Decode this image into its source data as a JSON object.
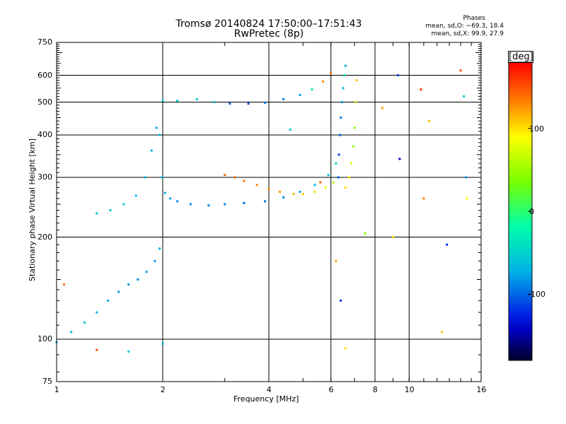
{
  "chart_data": {
    "type": "scatter",
    "title": "Tromsø 20140824  17:50:00–17:51:43",
    "subtitle": "RwPretec (8p)",
    "xlabel": "Frequency [MHz]",
    "ylabel": "Stationary phase Virtual Height [km]",
    "x_scale": "log",
    "y_scale": "log",
    "xlim": [
      1,
      16
    ],
    "ylim": [
      75,
      750
    ],
    "x_ticks": [
      1,
      2,
      4,
      6,
      8,
      10,
      16
    ],
    "y_ticks": [
      75,
      100,
      200,
      300,
      400,
      500,
      600,
      750
    ],
    "x_gridlines": [
      2,
      4,
      6,
      8,
      10
    ],
    "y_gridlines": [
      100,
      200,
      300,
      400,
      500,
      600
    ],
    "legend": {
      "title": "Phases",
      "lines": [
        "mean, sd,O:  −69.3, 18.4",
        "mean, sd,X:  99.9, 27.9"
      ]
    },
    "colorbar": {
      "label": "[deg]",
      "range": [
        -180,
        180
      ],
      "ticks": [
        100,
        0,
        -100
      ],
      "colormap": "rainbow"
    },
    "series": [
      {
        "trace": "F-region echo trace, phase ≈ -100..-60 deg",
        "x": [
          1.3,
          1.42,
          1.55,
          1.68,
          1.78,
          1.86,
          1.92,
          1.96,
          1.99,
          2.03,
          2.1,
          2.2,
          2.4,
          2.7,
          3.0,
          3.4,
          3.9,
          4.4,
          4.9,
          5.4,
          5.9,
          6.2
        ],
        "y": [
          235,
          240,
          250,
          265,
          300,
          360,
          420,
          400,
          300,
          270,
          260,
          255,
          250,
          248,
          250,
          252,
          255,
          262,
          272,
          285,
          305,
          330
        ],
        "phase": [
          -60,
          -65,
          -60,
          -65,
          -70,
          -75,
          -75,
          -70,
          -70,
          -75,
          -80,
          -85,
          -85,
          -90,
          -95,
          -100,
          -95,
          -90,
          -80,
          -70,
          -60,
          -50
        ]
      },
      {
        "trace": "low-frequency echo trace",
        "x": [
          1.0,
          1.1,
          1.2,
          1.3,
          1.4,
          1.5,
          1.6,
          1.7,
          1.8,
          1.9,
          1.96
        ],
        "y": [
          98,
          105,
          112,
          120,
          130,
          138,
          145,
          150,
          158,
          170,
          185
        ],
        "phase": [
          -70,
          -65,
          -60,
          -70,
          -75,
          -80,
          -85,
          -85,
          -80,
          -80,
          -75
        ]
      },
      {
        "trace": "multiple-hop echo trace",
        "x": [
          2.0,
          2.2,
          2.5,
          2.8,
          3.1,
          3.5,
          3.9,
          4.4,
          4.9,
          5.3,
          5.7,
          6.0
        ],
        "y": [
          505,
          505,
          510,
          500,
          495,
          495,
          498,
          510,
          525,
          545,
          575,
          610
        ],
        "phase": [
          -60,
          -65,
          -60,
          -70,
          -100,
          -110,
          -100,
          -90,
          -80,
          -40,
          130,
          140
        ]
      },
      {
        "trace": "echo trace at 280-300 km, phase ≈ +120..+150 deg",
        "x": [
          3.0,
          3.2,
          3.4,
          3.7,
          4.0,
          4.3,
          4.7,
          5.0,
          5.4,
          5.8,
          6.1
        ],
        "y": [
          305,
          300,
          293,
          285,
          277,
          272,
          268,
          268,
          272,
          280,
          290
        ],
        "phase": [
          140,
          140,
          135,
          130,
          130,
          125,
          115,
          110,
          100,
          80,
          60
        ]
      },
      {
        "trace": "vertical echo trace near 6.4 MHz",
        "x": [
          6.3,
          6.32,
          6.36,
          6.4,
          6.45,
          6.5,
          6.55,
          6.6
        ],
        "y": [
          300,
          350,
          400,
          450,
          500,
          550,
          600,
          640
        ],
        "phase": [
          -100,
          -110,
          -100,
          -90,
          -80,
          -60,
          -40,
          -70
        ]
      },
      {
        "trace": "vertical echo trace near 7 MHz",
        "x": [
          6.6,
          6.75,
          6.85,
          6.95,
          7.0,
          7.05,
          7.1
        ],
        "y": [
          280,
          300,
          330,
          370,
          420,
          500,
          580
        ],
        "phase": [
          100,
          90,
          70,
          50,
          40,
          60,
          110
        ]
      },
      {
        "trace": "scattered echoes",
        "x": [
          1.05,
          1.3,
          1.6,
          2.0,
          4.6,
          5.6,
          6.2,
          6.4,
          6.6,
          7.5,
          8.4,
          9.0,
          9.3,
          9.4,
          10.8,
          11.0,
          11.4,
          12.4,
          12.8,
          14.0,
          14.3,
          14.5,
          14.6
        ],
        "y": [
          145,
          93,
          92,
          97,
          415,
          290,
          170,
          130,
          94,
          205,
          480,
          200,
          600,
          340,
          545,
          260,
          440,
          105,
          190,
          620,
          520,
          300,
          260
        ],
        "phase": [
          140,
          150,
          -60,
          -70,
          -70,
          140,
          120,
          -120,
          100,
          40,
          120,
          100,
          -110,
          -140,
          160,
          130,
          110,
          110,
          -120,
          150,
          -60,
          -80,
          90
        ]
      }
    ]
  }
}
